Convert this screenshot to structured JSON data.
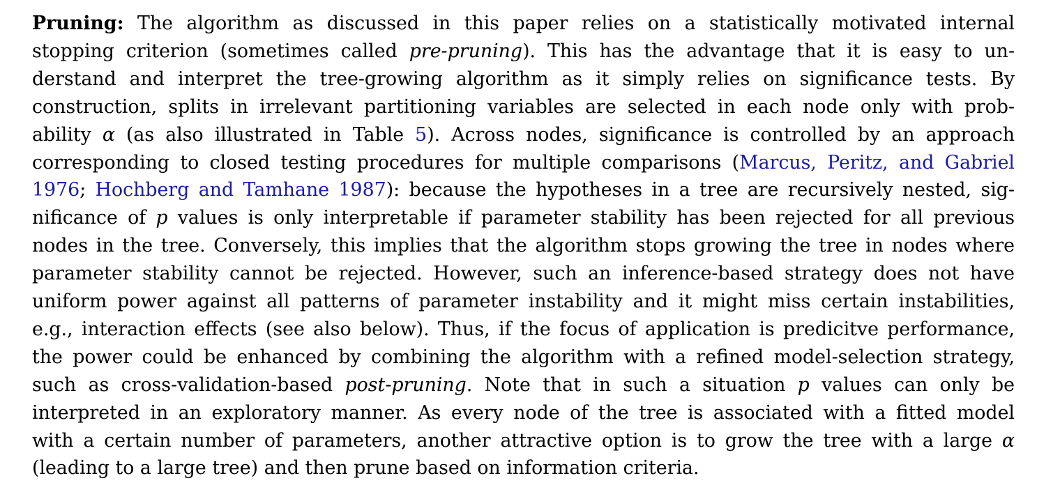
{
  "paragraph": {
    "heading": "Pruning:",
    "lines": [
      [
        {
          "t": "Pruning:",
          "s": "lead"
        },
        {
          "t": " The algorithm as discussed in this paper relies on a statistically motivated internal"
        }
      ],
      [
        {
          "t": "stopping criterion (sometimes called "
        },
        {
          "t": "pre-pruning",
          "s": "it"
        },
        {
          "t": "). This has the advantage that it is easy to un-"
        }
      ],
      [
        {
          "t": "derstand and interpret the tree-growing algorithm as it simply relies on significance tests. By"
        }
      ],
      [
        {
          "t": "construction, splits in irrelevant partitioning variables are selected in each node only with prob-"
        }
      ],
      [
        {
          "t": "ability "
        },
        {
          "t": "α",
          "s": "math"
        },
        {
          "t": " (as also illustrated in Table "
        },
        {
          "t": "5",
          "s": "ref"
        },
        {
          "t": "). Across nodes, significance is controlled by an approach"
        }
      ],
      [
        {
          "t": "corresponding to closed testing procedures for multiple comparisons ("
        },
        {
          "t": "Marcus, Peritz, and Gabriel",
          "s": "ref"
        }
      ],
      [
        {
          "t": "1976",
          "s": "ref"
        },
        {
          "t": "; "
        },
        {
          "t": "Hochberg and Tamhane 1987",
          "s": "ref"
        },
        {
          "t": "): because the hypotheses in a tree are recursively nested, sig-"
        }
      ],
      [
        {
          "t": "nificance of "
        },
        {
          "t": "p",
          "s": "math"
        },
        {
          "t": " values is only interpretable if parameter stability has been rejected for all previous"
        }
      ],
      [
        {
          "t": "nodes in the tree. Conversely, this implies that the algorithm stops growing the tree in nodes where"
        }
      ],
      [
        {
          "t": "parameter stability cannot be rejected. However, such an inference-based strategy does not have"
        }
      ],
      [
        {
          "t": "uniform power against all patterns of parameter instability and it might miss certain instabilities,"
        }
      ],
      [
        {
          "t": "e.g., interaction effects (see also below). Thus, if the focus of application is predicitve performance,"
        }
      ],
      [
        {
          "t": "the power could be enhanced by combining the algorithm with a refined model-selection strategy,"
        }
      ],
      [
        {
          "t": "such as cross-validation-based "
        },
        {
          "t": "post-pruning",
          "s": "it"
        },
        {
          "t": ". Note that in such a situation "
        },
        {
          "t": "p",
          "s": "math"
        },
        {
          "t": " values can only be"
        }
      ],
      [
        {
          "t": "interpreted in an exploratory manner. As every node of the tree is associated with a fitted model"
        }
      ],
      [
        {
          "t": "with a certain number of parameters, another attractive option is to grow the tree with a large "
        },
        {
          "t": "α",
          "s": "math"
        }
      ],
      [
        {
          "t": "(leading to a large tree) and then prune based on information criteria."
        }
      ]
    ]
  },
  "colors": {
    "text": "#000000",
    "link": "#1a1aa6",
    "background": "#ffffff"
  }
}
